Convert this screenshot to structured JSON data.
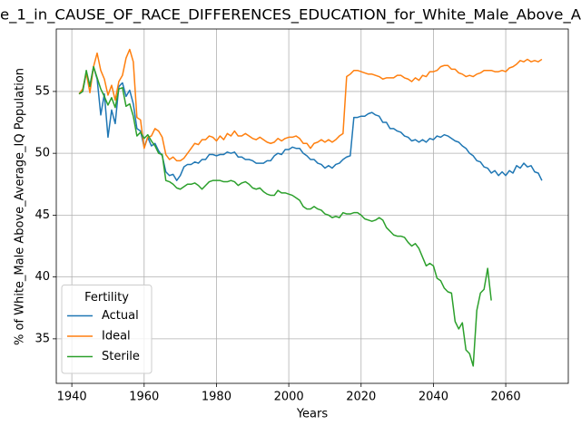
{
  "chart_data": {
    "type": "line",
    "title": "e_1_in_CAUSE_OF_RACE_DIFFERENCES_EDUCATION_for_White_Male_Above_A",
    "xlabel": "Years",
    "ylabel": "% of White_Male Above_Average_IQ Population",
    "legend_title": "Fertility",
    "legend": "lower left",
    "grid": true,
    "xlim": [
      1935.7,
      2077.3
    ],
    "ylim": [
      31.4,
      60.05
    ],
    "xticks": [
      1940,
      1960,
      1980,
      2000,
      2020,
      2040,
      2060
    ],
    "yticks": [
      35,
      40,
      45,
      50,
      55
    ],
    "x": [
      1942,
      1943,
      1944,
      1945,
      1946,
      1947,
      1948,
      1949,
      1950,
      1951,
      1952,
      1953,
      1954,
      1955,
      1956,
      1957,
      1958,
      1959,
      1960,
      1961,
      1962,
      1963,
      1964,
      1965,
      1966,
      1967,
      1968,
      1969,
      1970,
      1971,
      1972,
      1973,
      1974,
      1975,
      1976,
      1977,
      1978,
      1979,
      1980,
      1981,
      1982,
      1983,
      1984,
      1985,
      1986,
      1987,
      1988,
      1989,
      1990,
      1991,
      1992,
      1993,
      1994,
      1995,
      1996,
      1997,
      1998,
      1999,
      2000,
      2001,
      2002,
      2003,
      2004,
      2005,
      2006,
      2007,
      2008,
      2009,
      2010,
      2011,
      2012,
      2013,
      2014,
      2015,
      2016,
      2017,
      2018,
      2019,
      2020,
      2021,
      2022,
      2023,
      2024,
      2025,
      2026,
      2027,
      2028,
      2029,
      2030,
      2031,
      2032,
      2033,
      2034,
      2035,
      2036,
      2037,
      2038,
      2039,
      2040,
      2041,
      2042,
      2043,
      2044,
      2045,
      2046,
      2047,
      2048,
      2049,
      2050,
      2051,
      2052,
      2053,
      2054,
      2055,
      2056,
      2057,
      2058,
      2059,
      2060,
      2061,
      2062,
      2063,
      2064,
      2065,
      2066,
      2067,
      2068,
      2069,
      2070
    ],
    "series": [
      {
        "name": "Actual",
        "color": "#1f77b4",
        "values": [
          54.8,
          55.0,
          56.5,
          55.5,
          57.0,
          56.0,
          53.1,
          54.8,
          51.3,
          53.5,
          52.4,
          55.4,
          55.7,
          54.6,
          55.1,
          54.0,
          52.0,
          51.8,
          50.5,
          51.3,
          50.6,
          50.8,
          50.2,
          49.8,
          48.5,
          48.2,
          48.3,
          47.8,
          48.2,
          48.9,
          49.1,
          49.1,
          49.3,
          49.2,
          49.5,
          49.5,
          49.9,
          49.9,
          49.8,
          49.9,
          49.9,
          50.1,
          50.0,
          50.1,
          49.7,
          49.7,
          49.5,
          49.5,
          49.4,
          49.2,
          49.2,
          49.2,
          49.4,
          49.4,
          49.8,
          50.0,
          49.9,
          50.3,
          50.3,
          50.5,
          50.4,
          50.4,
          50.0,
          49.8,
          49.5,
          49.5,
          49.2,
          49.1,
          48.8,
          49.0,
          48.8,
          49.1,
          49.2,
          49.5,
          49.7,
          49.8,
          52.9,
          52.9,
          53.0,
          53.0,
          53.2,
          53.3,
          53.1,
          53.0,
          52.5,
          52.5,
          52.0,
          52.0,
          51.8,
          51.7,
          51.4,
          51.3,
          51.0,
          51.1,
          50.9,
          51.1,
          50.9,
          51.2,
          51.1,
          51.4,
          51.3,
          51.5,
          51.4,
          51.2,
          51.0,
          50.9,
          50.6,
          50.4,
          50.0,
          49.8,
          49.4,
          49.3,
          48.9,
          48.8,
          48.4,
          48.6,
          48.2,
          48.5,
          48.2,
          48.6,
          48.4,
          49.0,
          48.8,
          49.2,
          48.9,
          49.0,
          48.5,
          48.4,
          47.8
        ]
      },
      {
        "name": "Ideal",
        "color": "#ff7f0e",
        "values": [
          54.8,
          55.2,
          56.5,
          54.9,
          57.0,
          58.1,
          56.7,
          56.0,
          54.7,
          55.5,
          54.3,
          55.8,
          56.3,
          57.7,
          58.4,
          57.4,
          52.9,
          52.7,
          50.4,
          51.3,
          51.4,
          52.0,
          51.8,
          51.3,
          49.9,
          49.5,
          49.7,
          49.4,
          49.4,
          49.6,
          50.0,
          50.4,
          50.8,
          50.7,
          51.1,
          51.1,
          51.4,
          51.3,
          51.0,
          51.4,
          51.1,
          51.6,
          51.4,
          51.8,
          51.4,
          51.4,
          51.6,
          51.4,
          51.2,
          51.1,
          51.3,
          51.1,
          50.9,
          50.8,
          50.9,
          51.2,
          51.0,
          51.2,
          51.3,
          51.3,
          51.4,
          51.2,
          50.8,
          50.8,
          50.4,
          50.8,
          50.9,
          51.1,
          50.9,
          51.1,
          50.9,
          51.1,
          51.4,
          51.6,
          56.2,
          56.4,
          56.7,
          56.7,
          56.6,
          56.5,
          56.4,
          56.4,
          56.3,
          56.2,
          56.0,
          56.1,
          56.1,
          56.1,
          56.3,
          56.3,
          56.1,
          56.0,
          55.8,
          56.1,
          55.9,
          56.3,
          56.2,
          56.6,
          56.6,
          56.7,
          57.0,
          57.1,
          57.1,
          56.8,
          56.8,
          56.5,
          56.4,
          56.2,
          56.3,
          56.2,
          56.4,
          56.5,
          56.7,
          56.7,
          56.7,
          56.6,
          56.6,
          56.7,
          56.6,
          56.9,
          57.0,
          57.2,
          57.5,
          57.4,
          57.6,
          57.4,
          57.5,
          57.4,
          57.6
        ]
      },
      {
        "name": "Sterile",
        "color": "#2ca02c",
        "values": [
          54.8,
          55.0,
          56.7,
          55.4,
          57.0,
          56.1,
          55.2,
          54.6,
          53.9,
          54.5,
          53.7,
          55.2,
          55.3,
          53.8,
          54.0,
          53.0,
          51.4,
          51.7,
          51.2,
          51.5,
          51.0,
          50.6,
          50.0,
          49.9,
          47.8,
          47.7,
          47.5,
          47.2,
          47.1,
          47.3,
          47.5,
          47.5,
          47.6,
          47.4,
          47.1,
          47.4,
          47.7,
          47.8,
          47.8,
          47.8,
          47.7,
          47.7,
          47.8,
          47.7,
          47.4,
          47.6,
          47.7,
          47.5,
          47.2,
          47.1,
          47.2,
          46.9,
          46.7,
          46.6,
          46.6,
          47.0,
          46.8,
          46.8,
          46.7,
          46.6,
          46.4,
          46.2,
          45.7,
          45.5,
          45.5,
          45.7,
          45.5,
          45.4,
          45.1,
          45.0,
          44.8,
          44.9,
          44.8,
          45.2,
          45.1,
          45.1,
          45.2,
          45.2,
          45.0,
          44.7,
          44.6,
          44.5,
          44.6,
          44.8,
          44.6,
          44.0,
          43.7,
          43.4,
          43.3,
          43.3,
          43.2,
          42.8,
          42.5,
          42.7,
          42.3,
          41.6,
          40.9,
          41.1,
          40.9,
          39.9,
          39.7,
          39.1,
          38.8,
          38.7,
          36.4,
          35.8,
          36.3,
          34.1,
          33.8,
          32.8,
          37.3,
          38.7,
          39.0,
          40.7,
          38.1,
          null,
          null,
          null,
          null,
          null,
          null,
          null,
          null,
          null,
          null,
          null,
          null,
          null,
          null
        ]
      }
    ]
  }
}
